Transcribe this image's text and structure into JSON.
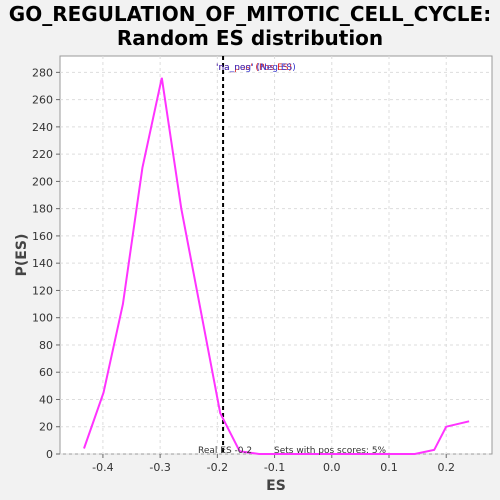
{
  "chart_data": {
    "type": "line",
    "title": [
      "GO_REGULATION_OF_MITOTIC_CELL_CYCLE:",
      "Random ES distribution"
    ],
    "xlabel": "ES",
    "ylabel": "P(ES)",
    "xlim": [
      -0.475,
      0.28
    ],
    "ylim": [
      0,
      292
    ],
    "xticks": [
      -0.4,
      -0.3,
      -0.2,
      -0.1,
      0.0,
      0.1,
      0.2
    ],
    "xtick_labels": [
      "-0.4",
      "-0.3",
      "-0.2",
      "-0.1",
      "0.0",
      "0.1",
      "0.2"
    ],
    "yticks": [
      0,
      20,
      40,
      60,
      80,
      100,
      120,
      140,
      160,
      180,
      200,
      220,
      240,
      260,
      280
    ],
    "grid": true,
    "series": [
      {
        "color": "#ff33ff",
        "x": [
          -0.433,
          -0.399,
          -0.365,
          -0.331,
          -0.297,
          -0.263,
          -0.229,
          -0.195,
          -0.161,
          -0.127,
          -0.093,
          -0.059,
          -0.025,
          0.009,
          0.043,
          0.077,
          0.111,
          0.145,
          0.179,
          0.2,
          0.24
        ],
        "y": [
          4,
          45,
          110,
          210,
          276,
          180,
          105,
          30,
          2,
          0,
          0,
          0,
          0,
          0,
          0,
          0,
          0,
          0,
          3,
          20,
          24
        ]
      }
    ],
    "annotations": {
      "real_es_x": -0.19,
      "real_es_label": "Real ES -0.2",
      "pos_scores_label": "Sets with pos scores: 5%",
      "legend_blue": "'na_neg' (Neg ES)",
      "legend_red": "'na_pos' (Pos ES)",
      "line_color": "#ff33ff",
      "legend_blue_color": "#3333cc",
      "legend_red_color": "#dd2222"
    }
  }
}
